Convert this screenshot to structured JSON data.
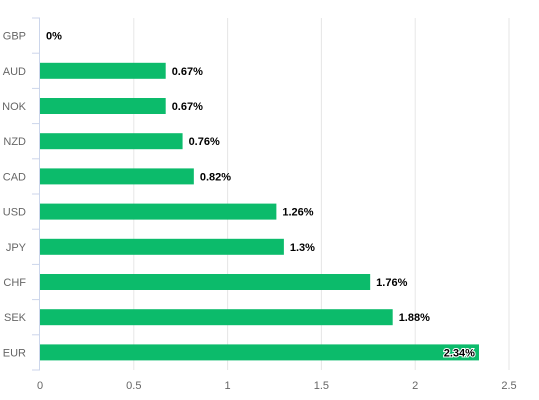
{
  "chart_data": {
    "type": "bar",
    "orientation": "horizontal",
    "categories": [
      "GBP",
      "AUD",
      "NOK",
      "NZD",
      "CAD",
      "USD",
      "JPY",
      "CHF",
      "SEK",
      "EUR"
    ],
    "values": [
      0,
      0.67,
      0.67,
      0.76,
      0.82,
      1.26,
      1.3,
      1.76,
      1.88,
      2.34
    ],
    "data_labels": [
      "0%",
      "0.67%",
      "0.67%",
      "0.76%",
      "0.82%",
      "1.26%",
      "1.3%",
      "1.76%",
      "1.88%",
      "2.34%"
    ],
    "xlim": [
      0,
      2.5
    ],
    "x_ticks": [
      0,
      0.5,
      1,
      1.5,
      2,
      2.5
    ],
    "x_tick_labels": [
      "0",
      "0.5",
      "1",
      "1.5",
      "2",
      "2.5"
    ],
    "grid": true,
    "legend": "none",
    "title": "",
    "xlabel": "",
    "ylabel": ""
  },
  "colors": {
    "bar": "#0cbb6b",
    "grid": "#e6e6e6",
    "axis": "#ccd6eb",
    "tick_text": "#666666",
    "label_text": "#000000"
  }
}
